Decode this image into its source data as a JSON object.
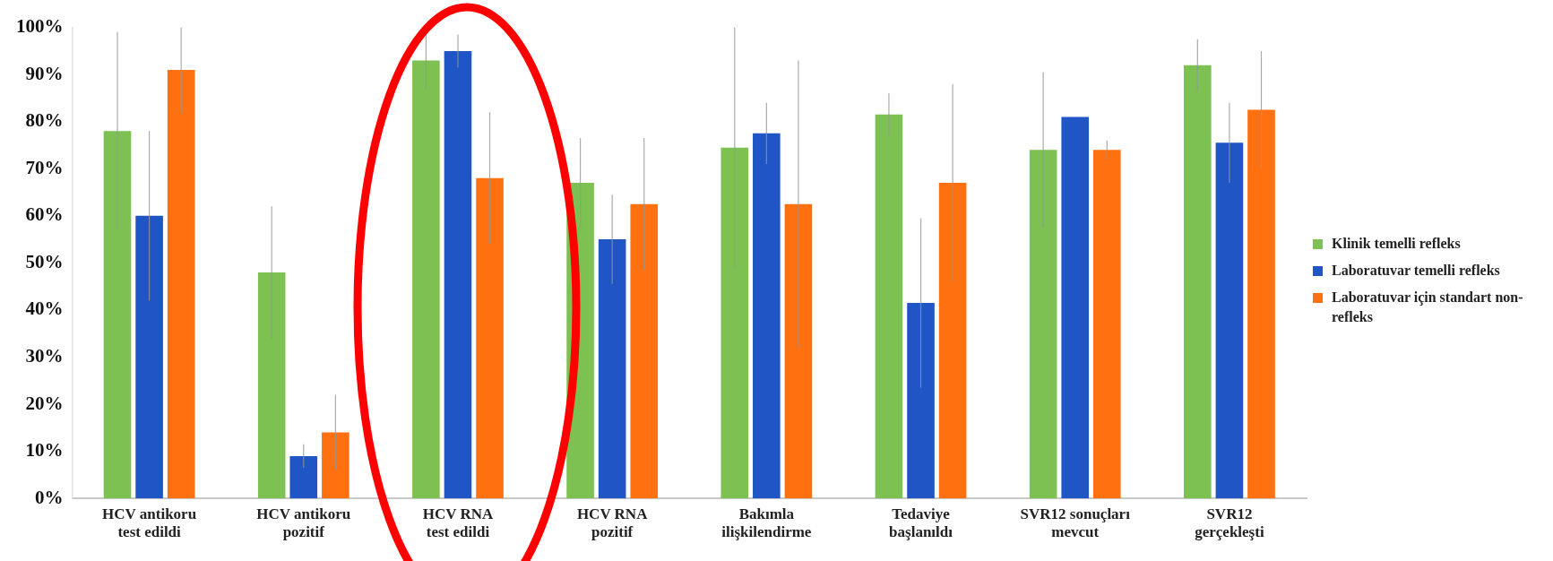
{
  "chart_data": {
    "type": "bar",
    "categories": [
      "HCV antikoru test edildi",
      "HCV antikoru pozitif",
      "HCV RNA test edildi",
      "HCV RNA pozitif",
      "Bakımla ilişkilendirme",
      "Tedaviye başlanıldı",
      "SVR12 sonuçları mevcut",
      "SVR12 gerçekleşti"
    ],
    "series": [
      {
        "name": "Klinik temelli refleks",
        "color": "#7dc152",
        "values": [
          78,
          48,
          93,
          67,
          74.5,
          81.5,
          74,
          92
        ],
        "errors": [
          21,
          14,
          6,
          9.5,
          25.5,
          4.5,
          16.5,
          5.5
        ]
      },
      {
        "name": "Laboratuvar temelli refleks",
        "color": "#1f55c4",
        "values": [
          60,
          9,
          95,
          55,
          77.5,
          41.5,
          81,
          75.5
        ],
        "errors": [
          18,
          2.5,
          3.5,
          9.5,
          6.5,
          18,
          null,
          8.5
        ]
      },
      {
        "name": "Laboratuvar için standart non-refleks",
        "color": "#ff7010",
        "values": [
          91,
          14,
          68,
          62.5,
          62.5,
          67,
          74,
          82.5
        ],
        "errors": [
          9,
          8,
          14,
          14,
          30.5,
          21,
          2,
          12.5
        ]
      }
    ],
    "ylim": [
      0,
      100
    ],
    "yticks": [
      {
        "value": 0,
        "label": "0%"
      },
      {
        "value": 10,
        "label": "10%"
      },
      {
        "value": 20,
        "label": "20%"
      },
      {
        "value": 30,
        "label": "30%"
      },
      {
        "value": 40,
        "label": "40%"
      },
      {
        "value": 50,
        "label": "50%"
      },
      {
        "value": 60,
        "label": "60%"
      },
      {
        "value": 70,
        "label": "70%"
      },
      {
        "value": 80,
        "label": "80%"
      },
      {
        "value": 90,
        "label": "90%"
      },
      {
        "value": 100,
        "label": "100%"
      }
    ],
    "grid": false,
    "legend": "right"
  }
}
